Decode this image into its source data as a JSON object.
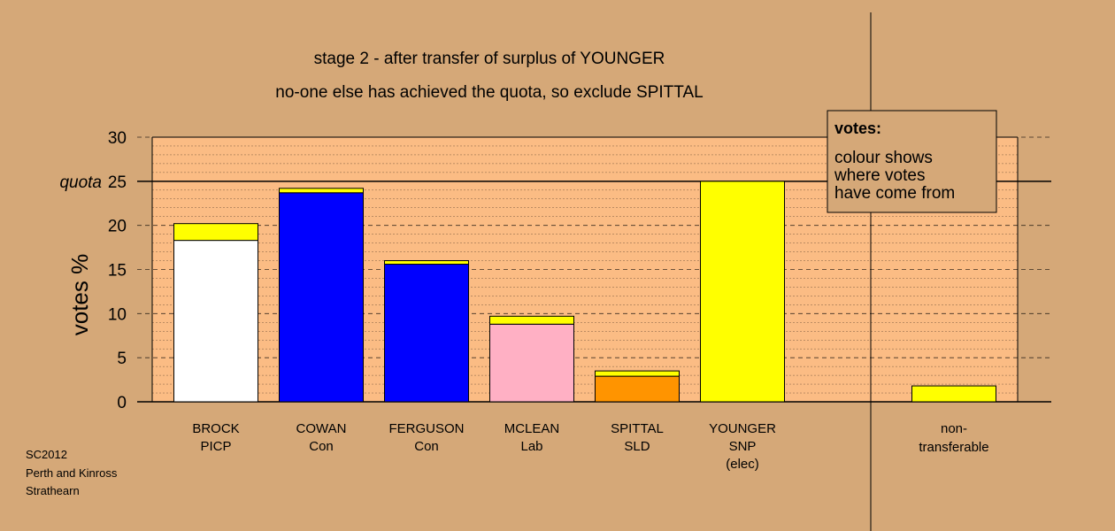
{
  "chart_data": {
    "type": "bar",
    "stacked": true,
    "title": "stage 2 - after transfer of surplus of YOUNGER",
    "subtitle": "no-one else has achieved the quota, so exclude SPITTAL",
    "ylabel": "votes %",
    "ylim": [
      0,
      30
    ],
    "yticks": [
      0,
      5,
      10,
      15,
      20,
      25,
      30
    ],
    "quota": 25,
    "quota_label": "quota",
    "categories": [
      [
        "BROCK",
        "PICP"
      ],
      [
        "COWAN",
        "Con"
      ],
      [
        "FERGUSON",
        "Con"
      ],
      [
        "MCLEAN",
        "Lab"
      ],
      [
        "SPITTAL",
        "SLD"
      ],
      [
        "YOUNGER",
        "SNP",
        "(elec)"
      ]
    ],
    "bars": [
      {
        "segments": [
          {
            "value": 18.3,
            "color": "#ffffff"
          },
          {
            "value": 1.9,
            "color": "#ffff00"
          }
        ]
      },
      {
        "segments": [
          {
            "value": 23.7,
            "color": "#0000ff"
          },
          {
            "value": 0.5,
            "color": "#ffff00"
          }
        ]
      },
      {
        "segments": [
          {
            "value": 15.6,
            "color": "#0000ff"
          },
          {
            "value": 0.4,
            "color": "#ffff00"
          }
        ]
      },
      {
        "segments": [
          {
            "value": 8.8,
            "color": "#ffb0c4"
          },
          {
            "value": 0.9,
            "color": "#ffff00"
          }
        ]
      },
      {
        "segments": [
          {
            "value": 2.9,
            "color": "#ff9400"
          },
          {
            "value": 0.6,
            "color": "#ffff00"
          }
        ]
      },
      {
        "segments": [
          {
            "value": 25.0,
            "color": "#ffff00"
          }
        ]
      }
    ],
    "nontransferable": {
      "label": [
        "non-",
        "transferable"
      ],
      "value": 1.8,
      "color": "#ffff00"
    },
    "legend": {
      "title": "votes:",
      "lines": [
        "colour shows",
        "where votes",
        "have come from"
      ]
    },
    "grid": true
  },
  "source": [
    "SC2012",
    "Perth and Kinross",
    "Strathearn"
  ],
  "colors": {
    "background": "#d5a878",
    "plot_background": "#fbbc84"
  }
}
